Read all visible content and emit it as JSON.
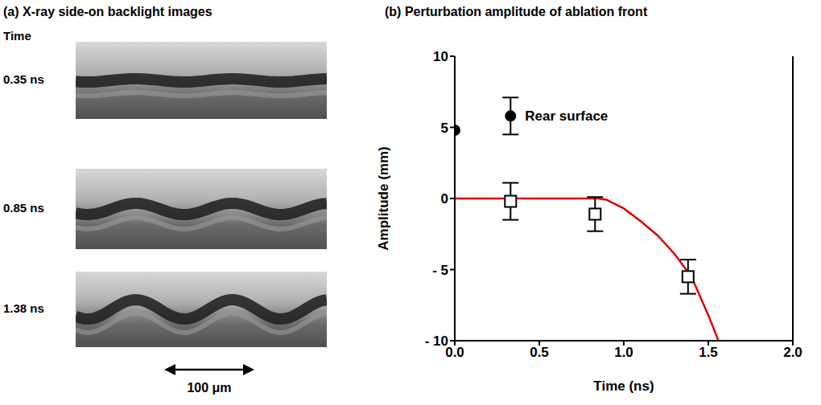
{
  "panel_a": {
    "title": "(a) X-ray side-on backlight images",
    "time_heading": "Time",
    "images": [
      {
        "time": "0.35 ns"
      },
      {
        "time": "0.85 ns"
      },
      {
        "time": "1.38 ns"
      }
    ],
    "scale_bar": "100 μm"
  },
  "chart_data": {
    "type": "scatter",
    "title": "(b) Perturbation amplitude of ablation front",
    "x_label": "Time (ns)",
    "y_label": "Amplitude (mm)",
    "xlim": [
      0,
      2
    ],
    "xticks": [
      {
        "value": 0,
        "label": "0.0"
      },
      {
        "value": 0.5,
        "label": "0.5"
      },
      {
        "value": 1,
        "label": "1.0"
      },
      {
        "value": 1.5,
        "label": "1.5"
      },
      {
        "value": 2,
        "label": "2.0"
      }
    ],
    "ylim": [
      -10,
      10
    ],
    "yticks": [
      {
        "value": -10,
        "label": "- 10"
      },
      {
        "value": -5,
        "label": "- 5"
      },
      0,
      5,
      10
    ],
    "series": [
      {
        "type": "scatter",
        "marker": "square",
        "color": "#000000",
        "x": [
          0.33,
          0.83,
          1.38
        ],
        "values": [
          -0.2,
          -1.1,
          -5.5
        ],
        "error": [
          1.3,
          1.2,
          1.2
        ]
      },
      {
        "name": "Rear surface",
        "type": "scatter",
        "marker": "circle",
        "color": "#000000",
        "x": [
          0,
          0.33
        ],
        "values": [
          4.8,
          5.8
        ],
        "error": [
          null,
          1.3
        ]
      },
      {
        "type": "line",
        "color": "#e00000",
        "x": [
          0,
          0.85,
          0.9,
          1.0,
          1.1,
          1.2,
          1.3,
          1.4,
          1.5,
          1.56
        ],
        "values": [
          0,
          0,
          -0.1,
          -0.7,
          -1.6,
          -2.6,
          -3.9,
          -5.5,
          -8.2,
          -10
        ]
      }
    ]
  }
}
